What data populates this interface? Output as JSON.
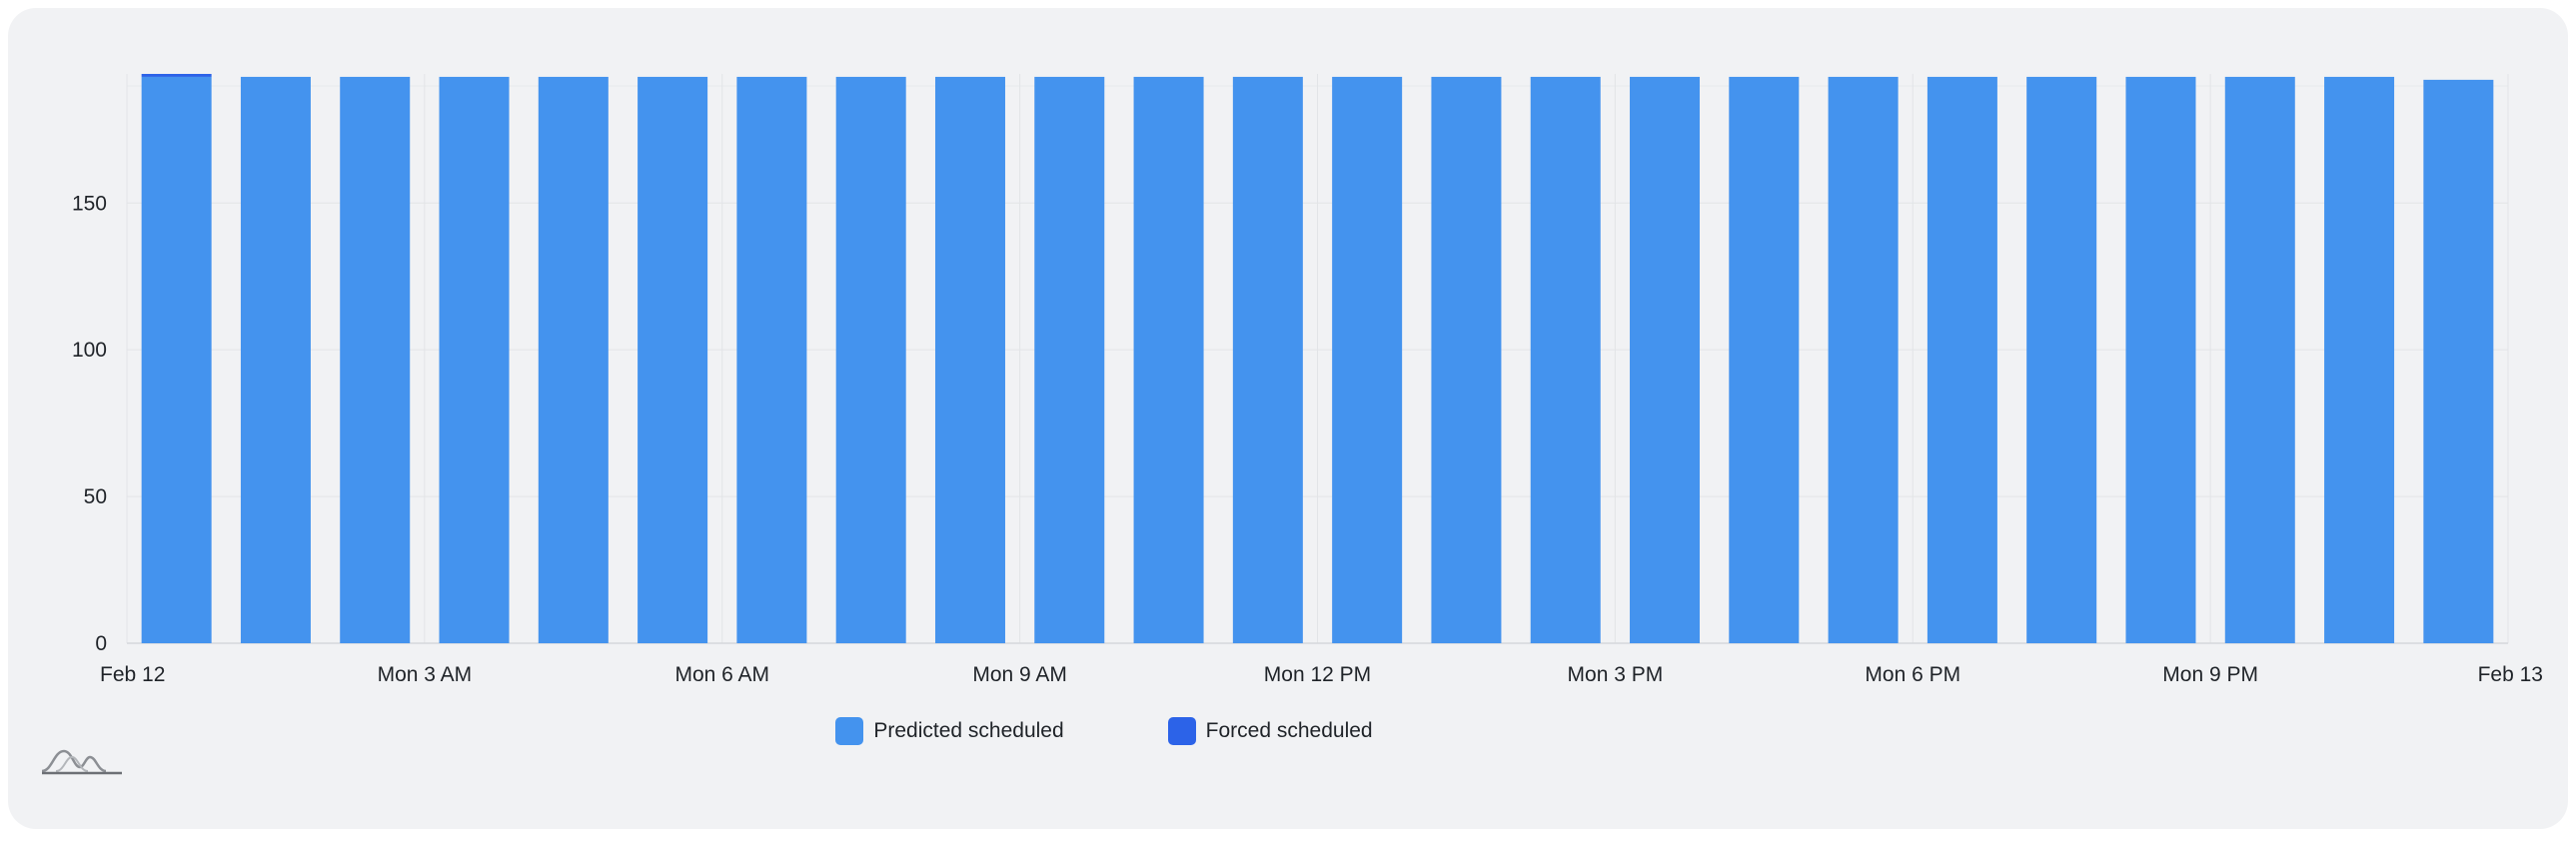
{
  "chart_data": {
    "type": "bar",
    "stacked": true,
    "categories": [
      "00:00",
      "01:00",
      "02:00",
      "03:00",
      "04:00",
      "05:00",
      "06:00",
      "07:00",
      "08:00",
      "09:00",
      "10:00",
      "11:00",
      "12:00",
      "13:00",
      "14:00",
      "15:00",
      "16:00",
      "17:00",
      "18:00",
      "19:00",
      "20:00",
      "21:00",
      "22:00",
      "23:00"
    ],
    "series": [
      {
        "name": "Predicted scheduled",
        "color": "#4493ee",
        "values": [
          193,
          193,
          193,
          193,
          193,
          193,
          193,
          193,
          193,
          193,
          193,
          193,
          193,
          193,
          193,
          193,
          193,
          193,
          193,
          193,
          193,
          193,
          193,
          192
        ]
      },
      {
        "name": "Forced scheduled",
        "color": "#2c63e8",
        "values": [
          1,
          0,
          0,
          0,
          0,
          0,
          0,
          0,
          0,
          0,
          0,
          0,
          0,
          0,
          0,
          0,
          0,
          0,
          0,
          0,
          0,
          0,
          0,
          0
        ]
      }
    ],
    "x_tick_labels": [
      "Feb 12",
      "Mon 3 AM",
      "Mon 6 AM",
      "Mon 9 AM",
      "Mon 12 PM",
      "Mon 3 PM",
      "Mon 6 PM",
      "Mon 9 PM",
      "Feb 13"
    ],
    "y_ticks": [
      0,
      50,
      100,
      150
    ],
    "ylim": [
      0,
      194
    ],
    "xlabel": "",
    "ylabel": "",
    "grid": true,
    "legend_position": "bottom-center"
  },
  "legend": {
    "predicted_label": "Predicted scheduled",
    "forced_label": "Forced scheduled"
  },
  "logo_icon": "sparkline-logo-icon"
}
